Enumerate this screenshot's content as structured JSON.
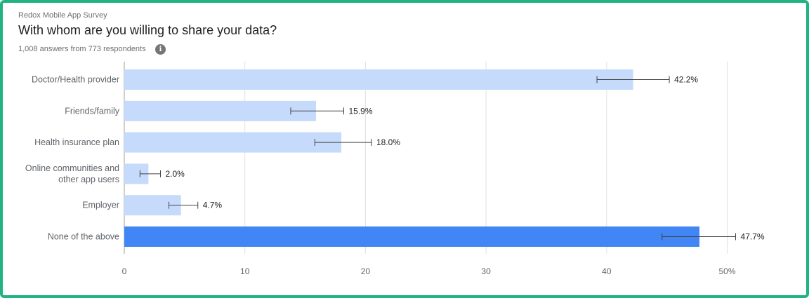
{
  "header": {
    "survey_name": "Redox Mobile App Survey",
    "question": "With whom are you willing to share your data?",
    "summary": "1,008 answers from 773 respondents",
    "info_icon": "info-icon"
  },
  "chart_data": {
    "type": "bar",
    "orientation": "horizontal",
    "categories": [
      [
        "Doctor/Health provider"
      ],
      [
        "Friends/family"
      ],
      [
        "Health insurance plan"
      ],
      [
        "Online communities and",
        "other app users"
      ],
      [
        "Employer"
      ],
      [
        "None of the above"
      ]
    ],
    "values": [
      42.2,
      15.9,
      18.0,
      2.0,
      4.7,
      47.7
    ],
    "value_labels": [
      "42.2%",
      "15.9%",
      "18.0%",
      "2.0%",
      "4.7%",
      "47.7%"
    ],
    "error_low": [
      39.2,
      13.8,
      15.8,
      1.3,
      3.7,
      44.6
    ],
    "error_high": [
      45.2,
      18.2,
      20.5,
      3.0,
      6.1,
      50.7
    ],
    "highlight_index": 5,
    "xlim": [
      0,
      50
    ],
    "x_ticks": [
      0,
      10,
      20,
      30,
      40,
      50
    ],
    "x_tick_labels": [
      "0",
      "10",
      "20",
      "30",
      "40",
      "50%"
    ],
    "grid": true,
    "colors": {
      "bar": "#c6dafc",
      "highlight": "#4285f4",
      "grid": "#e0e0e0",
      "error_bar": "#444444"
    }
  }
}
